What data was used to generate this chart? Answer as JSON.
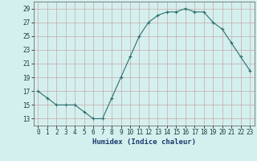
{
  "x": [
    0,
    1,
    2,
    3,
    4,
    5,
    6,
    7,
    8,
    9,
    10,
    11,
    12,
    13,
    14,
    15,
    16,
    17,
    18,
    19,
    20,
    21,
    22,
    23
  ],
  "y": [
    17,
    16,
    15,
    15,
    15,
    14,
    13,
    13,
    16,
    19,
    22,
    25,
    27,
    28,
    28.5,
    28.5,
    29,
    28.5,
    28.5,
    27,
    26,
    24,
    22,
    20
  ],
  "line_color": "#2d6e6e",
  "marker_color": "#2d6e6e",
  "bg_color": "#d4f0ee",
  "grid_color": "#c8a8a8",
  "xlabel": "Humidex (Indice chaleur)",
  "xlim": [
    -0.5,
    23.5
  ],
  "ylim": [
    12,
    30
  ],
  "yticks": [
    13,
    15,
    17,
    19,
    21,
    23,
    25,
    27,
    29
  ],
  "xticks": [
    0,
    1,
    2,
    3,
    4,
    5,
    6,
    7,
    8,
    9,
    10,
    11,
    12,
    13,
    14,
    15,
    16,
    17,
    18,
    19,
    20,
    21,
    22,
    23
  ]
}
